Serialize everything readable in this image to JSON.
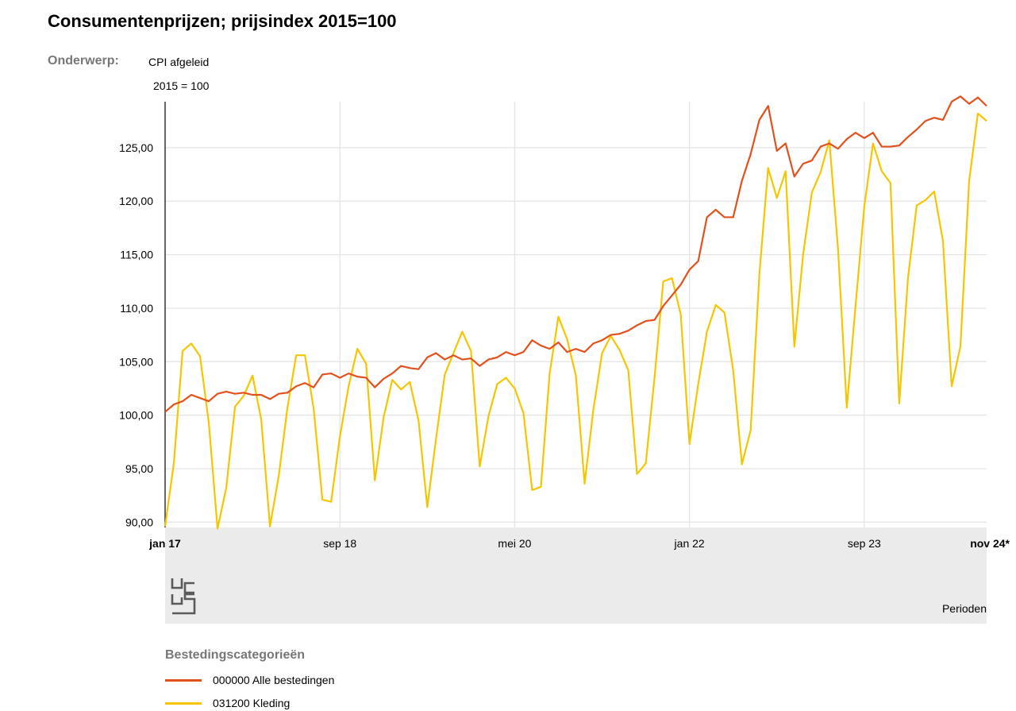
{
  "header": {
    "title": "Consumentenprijzen; prijsindex 2015=100",
    "subject_label": "Onderwerp:",
    "subject_value": "CPI afgeleid",
    "unit": "2015 = 100"
  },
  "chart_data": {
    "type": "line",
    "xlabel": "Perioden",
    "ylabel": "",
    "ylim": [
      89.5,
      129.3
    ],
    "y_ticks": [
      "90,00",
      "95,00",
      "100,00",
      "105,00",
      "110,00",
      "115,00",
      "120,00",
      "125,00"
    ],
    "x_ticks": [
      {
        "label": "jan 17",
        "index": 0,
        "bold": true
      },
      {
        "label": "sep 18",
        "index": 20,
        "bold": false
      },
      {
        "label": "mei 20",
        "index": 40,
        "bold": false
      },
      {
        "label": "jan 22",
        "index": 60,
        "bold": false
      },
      {
        "label": "sep 23",
        "index": 80,
        "bold": false
      },
      {
        "label": "nov 24*",
        "index": 94,
        "bold": true
      }
    ],
    "grid": true,
    "legend_position": "bottom",
    "legend_title": "Bestedingscategorieën",
    "series": [
      {
        "name": "000000 Alle bestedingen",
        "color": "#e2511c",
        "values": [
          100.3,
          101.0,
          101.3,
          101.9,
          101.6,
          101.3,
          102.0,
          102.2,
          102.0,
          102.1,
          101.9,
          101.9,
          101.5,
          102.0,
          102.1,
          102.7,
          103.0,
          102.6,
          103.8,
          103.9,
          103.5,
          103.9,
          103.6,
          103.5,
          102.6,
          103.4,
          103.9,
          104.6,
          104.4,
          104.3,
          105.4,
          105.8,
          105.2,
          105.6,
          105.2,
          105.3,
          104.6,
          105.2,
          105.4,
          105.9,
          105.6,
          105.9,
          107.0,
          106.5,
          106.2,
          106.8,
          105.9,
          106.2,
          105.9,
          106.7,
          107.0,
          107.5,
          107.6,
          107.9,
          108.4,
          108.8,
          108.9,
          110.2,
          111.2,
          112.2,
          113.6,
          114.4,
          118.5,
          119.2,
          118.5,
          118.5,
          121.9,
          124.4,
          127.6,
          128.9,
          124.7,
          125.4,
          122.3,
          123.5,
          123.8,
          125.1,
          125.4,
          124.9,
          125.8,
          126.4,
          125.9,
          126.4,
          125.1,
          125.1,
          125.2,
          126.0,
          126.7,
          127.5,
          127.8,
          127.6,
          129.3,
          129.8,
          129.1,
          129.7,
          128.9
        ]
      },
      {
        "name": "031200 Kleding",
        "color": "#f5c600",
        "values": [
          89.6,
          95.5,
          106.0,
          106.7,
          105.5,
          99.3,
          89.4,
          93.2,
          100.8,
          101.8,
          103.7,
          99.6,
          89.6,
          94.3,
          100.7,
          105.6,
          105.6,
          100.6,
          92.1,
          91.9,
          98.0,
          102.7,
          106.2,
          104.8,
          93.9,
          99.8,
          103.3,
          102.4,
          103.1,
          99.5,
          91.4,
          97.8,
          103.8,
          105.8,
          107.8,
          106.0,
          95.2,
          99.9,
          102.9,
          103.5,
          102.5,
          100.2,
          93.0,
          93.3,
          103.9,
          109.2,
          107.1,
          103.7,
          93.6,
          100.5,
          105.8,
          107.4,
          106.1,
          104.2,
          94.5,
          95.5,
          103.5,
          112.5,
          112.8,
          109.4,
          97.3,
          102.9,
          107.8,
          110.3,
          109.6,
          104.2,
          95.4,
          98.6,
          113.2,
          123.1,
          120.3,
          122.8,
          106.4,
          115.0,
          120.8,
          122.7,
          125.7,
          115.5,
          100.7,
          110.2,
          119.5,
          125.4,
          122.8,
          121.7,
          101.1,
          112.8,
          119.6,
          120.1,
          120.9,
          116.3,
          102.7,
          106.4,
          121.9,
          128.2,
          127.5
        ]
      }
    ]
  },
  "footer": {
    "perioden": "Perioden"
  }
}
